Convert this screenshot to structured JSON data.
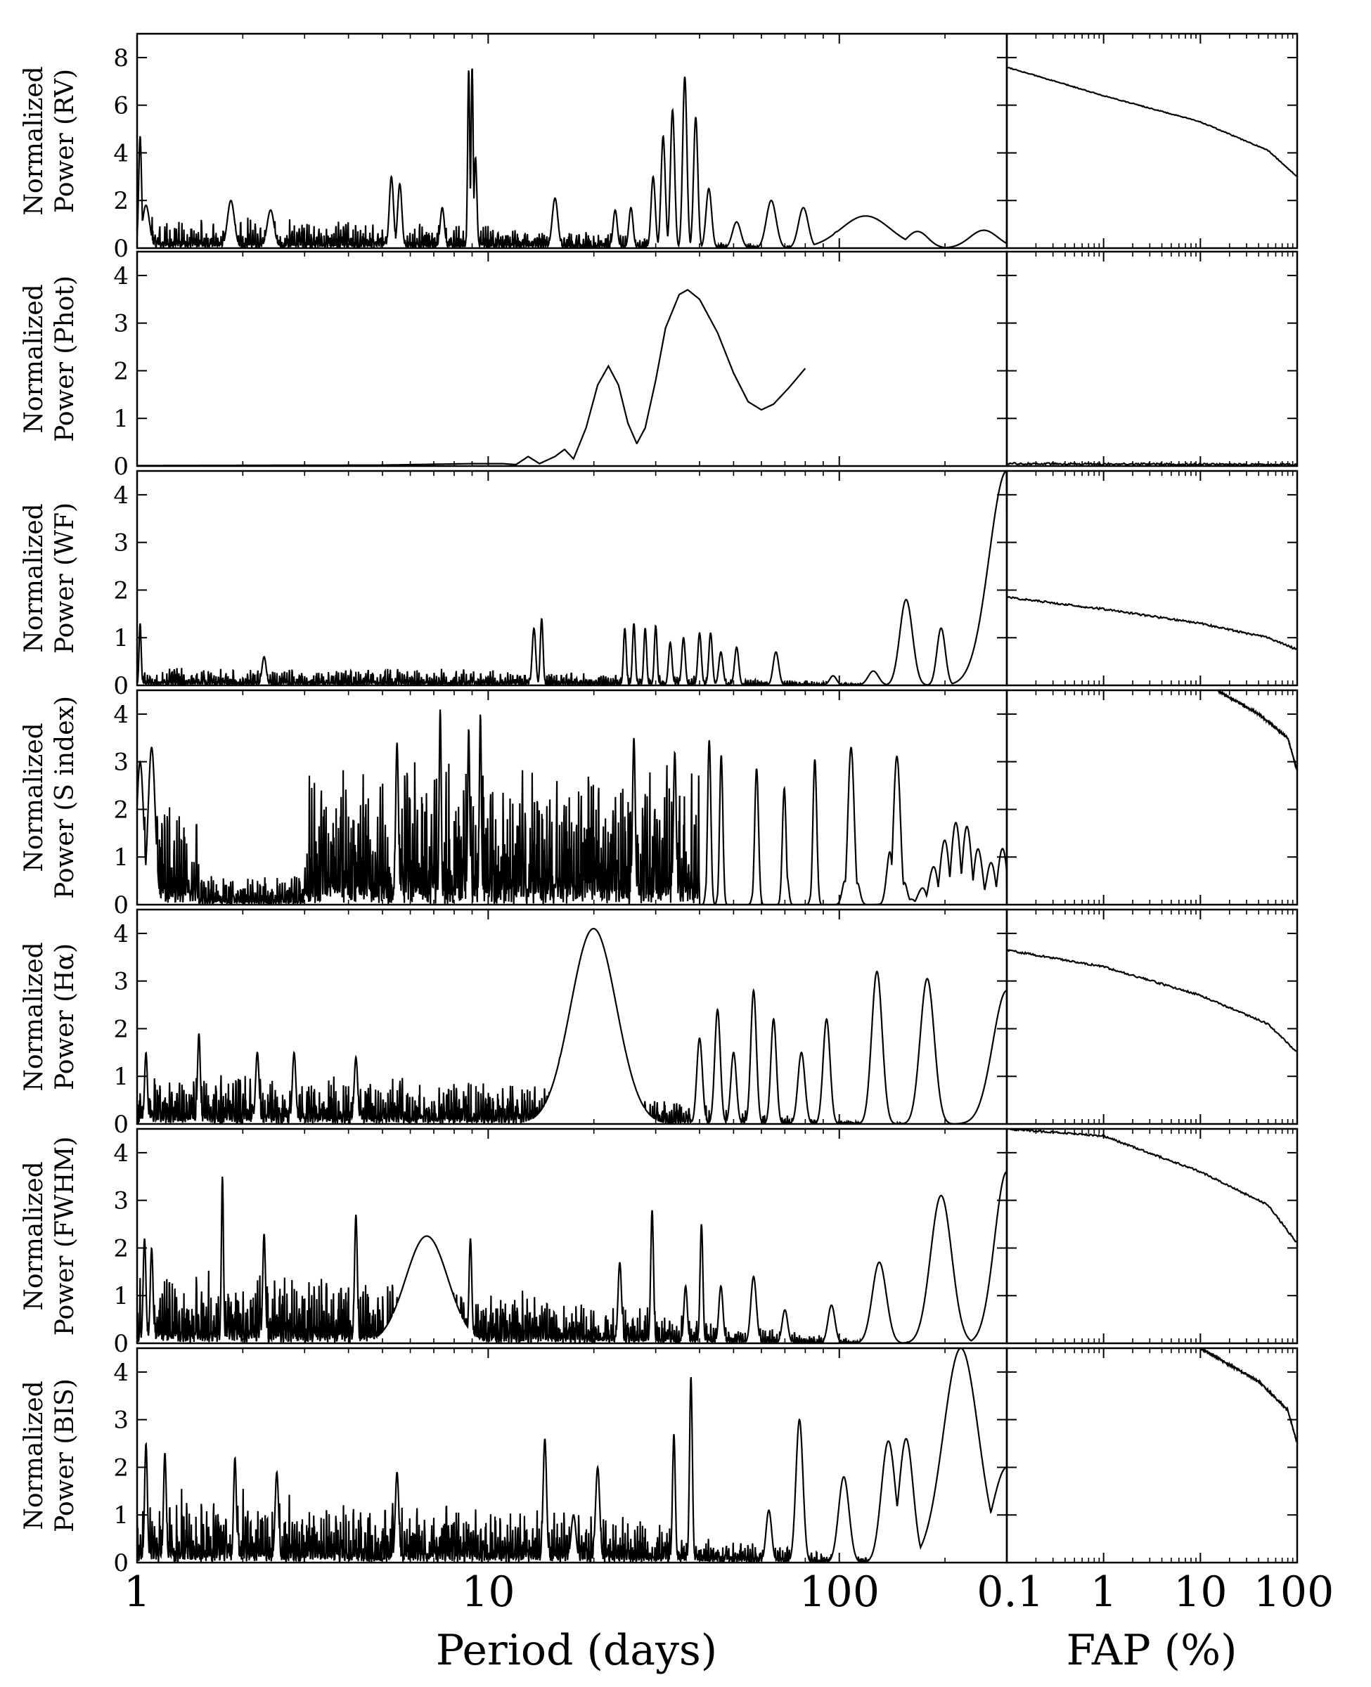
{
  "chart_data": [
    {
      "type": "line",
      "panel": "rv",
      "ylabel_lines": [
        "Normalized",
        "Power (RV)"
      ],
      "ylim": [
        0,
        9
      ],
      "yticks": [
        0,
        2,
        4,
        6,
        8
      ],
      "x_scale": "log",
      "xlim": [
        1,
        300
      ],
      "x_extent": [
        1,
        300
      ],
      "peaks": [
        {
          "x": 1.02,
          "y": 4.7,
          "w": 0.004
        },
        {
          "x": 1.06,
          "y": 1.8,
          "w": 0.01
        },
        {
          "x": 1.85,
          "y": 2.0,
          "w": 0.01
        },
        {
          "x": 2.4,
          "y": 1.6,
          "w": 0.01
        },
        {
          "x": 5.3,
          "y": 3.0,
          "w": 0.006
        },
        {
          "x": 5.6,
          "y": 2.7,
          "w": 0.006
        },
        {
          "x": 7.4,
          "y": 1.7,
          "w": 0.006
        },
        {
          "x": 8.8,
          "y": 7.5,
          "w": 0.003
        },
        {
          "x": 9.0,
          "y": 7.6,
          "w": 0.003
        },
        {
          "x": 9.2,
          "y": 3.8,
          "w": 0.004
        },
        {
          "x": 15.5,
          "y": 2.1,
          "w": 0.008
        },
        {
          "x": 23,
          "y": 1.6,
          "w": 0.006
        },
        {
          "x": 25.5,
          "y": 1.7,
          "w": 0.006
        },
        {
          "x": 29.5,
          "y": 3.0,
          "w": 0.006
        },
        {
          "x": 31.5,
          "y": 4.7,
          "w": 0.006
        },
        {
          "x": 33.5,
          "y": 5.8,
          "w": 0.006
        },
        {
          "x": 36.3,
          "y": 7.2,
          "w": 0.006
        },
        {
          "x": 39,
          "y": 5.5,
          "w": 0.006
        },
        {
          "x": 42.5,
          "y": 2.5,
          "w": 0.008
        },
        {
          "x": 51,
          "y": 1.1,
          "w": 0.012
        },
        {
          "x": 64,
          "y": 2.0,
          "w": 0.014
        },
        {
          "x": 79,
          "y": 1.7,
          "w": 0.014
        },
        {
          "x": 99,
          "y": 0.7,
          "w": 0.02
        },
        {
          "x": 132,
          "y": 0.6,
          "w": 0.025
        },
        {
          "x": 167,
          "y": 0.7,
          "w": 0.03
        },
        {
          "x": 258,
          "y": 0.75,
          "w": 0.04
        }
      ],
      "tail_peak": {
        "x": 4.15,
        "y": 1.35,
        "w": 0.07
      },
      "noise_level": 0.7,
      "noise_decay": 30,
      "end_value": 0.8,
      "fap_curve": [
        [
          0.1,
          7.6
        ],
        [
          1,
          6.4
        ],
        [
          10,
          5.3
        ],
        [
          50,
          4.1
        ],
        [
          100,
          3.0
        ]
      ]
    },
    {
      "type": "line",
      "panel": "phot",
      "ylabel_lines": [
        "Normalized",
        "Power (Phot)"
      ],
      "ylim": [
        0,
        4.5
      ],
      "yticks": [
        0,
        1,
        2,
        3,
        4
      ],
      "x_scale": "log",
      "xlim": [
        1,
        300
      ],
      "x_extent": [
        1,
        80
      ],
      "smooth_curve": [
        [
          1,
          0.01
        ],
        [
          5,
          0.02
        ],
        [
          9,
          0.05
        ],
        [
          11,
          0.05
        ],
        [
          12,
          0.03
        ],
        [
          13,
          0.2
        ],
        [
          14,
          0.05
        ],
        [
          15.5,
          0.2
        ],
        [
          16.5,
          0.35
        ],
        [
          17.5,
          0.15
        ],
        [
          19,
          0.8
        ],
        [
          20.5,
          1.7
        ],
        [
          22,
          2.1
        ],
        [
          23.5,
          1.7
        ],
        [
          25,
          0.9
        ],
        [
          26.5,
          0.47
        ],
        [
          28,
          0.8
        ],
        [
          30,
          1.8
        ],
        [
          32,
          2.9
        ],
        [
          35,
          3.6
        ],
        [
          37,
          3.7
        ],
        [
          40,
          3.5
        ],
        [
          45,
          2.8
        ],
        [
          50,
          1.95
        ],
        [
          55,
          1.35
        ],
        [
          60,
          1.18
        ],
        [
          65,
          1.3
        ],
        [
          72,
          1.65
        ],
        [
          80,
          2.05
        ]
      ],
      "fap_curve": [
        [
          0.1,
          0.05
        ],
        [
          100,
          0.03
        ]
      ]
    },
    {
      "type": "line",
      "panel": "wf",
      "ylabel_lines": [
        "Normalized",
        "Power (WF)"
      ],
      "ylim": [
        0,
        4.5
      ],
      "yticks": [
        0,
        1,
        2,
        3,
        4
      ],
      "x_scale": "log",
      "xlim": [
        1,
        300
      ],
      "x_extent": [
        1,
        300
      ],
      "peaks": [
        {
          "x": 1.02,
          "y": 1.3,
          "w": 0.003
        },
        {
          "x": 2.3,
          "y": 0.6,
          "w": 0.006
        },
        {
          "x": 13.5,
          "y": 1.2,
          "w": 0.005
        },
        {
          "x": 14.2,
          "y": 1.4,
          "w": 0.004
        },
        {
          "x": 24.5,
          "y": 1.2,
          "w": 0.004
        },
        {
          "x": 26,
          "y": 1.3,
          "w": 0.004
        },
        {
          "x": 28,
          "y": 1.2,
          "w": 0.004
        },
        {
          "x": 30,
          "y": 1.25,
          "w": 0.004
        },
        {
          "x": 33,
          "y": 0.9,
          "w": 0.005
        },
        {
          "x": 36,
          "y": 1.0,
          "w": 0.005
        },
        {
          "x": 40,
          "y": 1.1,
          "w": 0.005
        },
        {
          "x": 43,
          "y": 1.1,
          "w": 0.005
        },
        {
          "x": 46,
          "y": 0.7,
          "w": 0.006
        },
        {
          "x": 51,
          "y": 0.8,
          "w": 0.006
        },
        {
          "x": 66,
          "y": 0.7,
          "w": 0.008
        },
        {
          "x": 96,
          "y": 0.2,
          "w": 0.01
        },
        {
          "x": 125,
          "y": 0.3,
          "w": 0.015
        },
        {
          "x": 155,
          "y": 1.8,
          "w": 0.018
        },
        {
          "x": 195,
          "y": 1.2,
          "w": 0.012
        },
        {
          "x": 300,
          "y": 4.5,
          "w": 0.05
        }
      ],
      "tail_peak": {
        "x": 6.0,
        "y": 3.15,
        "w": 0.05
      },
      "tail_extra": {
        "x": 9.5,
        "y": 3.6,
        "w": 0.06
      },
      "noise_level": 0.2,
      "noise_decay": 60,
      "end_value": 3.6,
      "fap_curve": [
        [
          0.1,
          1.85
        ],
        [
          1,
          1.6
        ],
        [
          10,
          1.3
        ],
        [
          50,
          1.0
        ],
        [
          100,
          0.75
        ]
      ]
    },
    {
      "type": "line",
      "panel": "sindex",
      "ylabel_lines": [
        "Normalized",
        "Power (S index)"
      ],
      "ylim": [
        0,
        4.5
      ],
      "yticks": [
        0,
        1,
        2,
        3,
        4
      ],
      "x_scale": "log",
      "xlim": [
        1,
        300
      ],
      "x_extent": [
        1,
        300
      ],
      "peaks": [
        {
          "x": 1.02,
          "y": 3.0,
          "w": 0.01
        },
        {
          "x": 1.1,
          "y": 3.3,
          "w": 0.01
        },
        {
          "x": 5.5,
          "y": 3.4,
          "w": 0.004
        },
        {
          "x": 7.3,
          "y": 4.1,
          "w": 0.003
        },
        {
          "x": 8.8,
          "y": 3.7,
          "w": 0.003
        },
        {
          "x": 9.5,
          "y": 4.0,
          "w": 0.003
        },
        {
          "x": 26,
          "y": 3.5,
          "w": 0.004
        },
        {
          "x": 34,
          "y": 3.2,
          "w": 0.004
        },
        {
          "x": 42.5,
          "y": 4.2,
          "w": 0.005
        },
        {
          "x": 46,
          "y": 3.6,
          "w": 0.005
        },
        {
          "x": 58,
          "y": 3.1,
          "w": 0.006
        },
        {
          "x": 70,
          "y": 3.1,
          "w": 0.006
        },
        {
          "x": 85,
          "y": 3.25,
          "w": 0.006
        },
        {
          "x": 108,
          "y": 3.3,
          "w": 0.012
        },
        {
          "x": 145,
          "y": 3.2,
          "w": 0.015
        },
        {
          "x": 220,
          "y": 1.75,
          "w": 0.06
        },
        {
          "x": 300,
          "y": 0.25,
          "w": 0.05
        }
      ],
      "tail_peak": {
        "x": 5.15,
        "y": 1.8,
        "w": 0.12
      },
      "noise_level": 1.6,
      "noise_decay": 1000,
      "noise_band": [
        3,
        40
      ],
      "dip_band": [
        1.5,
        3
      ],
      "end_value": 0.3,
      "fap_curve": [
        [
          15,
          4.5
        ],
        [
          40,
          4.0
        ],
        [
          80,
          3.5
        ],
        [
          100,
          2.8
        ]
      ]
    },
    {
      "type": "line",
      "panel": "halpha",
      "ylabel_lines": [
        "Normalized",
        "Power (Hα)"
      ],
      "ylim": [
        0,
        4.5
      ],
      "yticks": [
        0,
        1,
        2,
        3,
        4
      ],
      "x_scale": "log",
      "xlim": [
        1,
        300
      ],
      "x_extent": [
        1,
        300
      ],
      "peaks": [
        {
          "x": 1.06,
          "y": 1.5,
          "w": 0.004
        },
        {
          "x": 1.5,
          "y": 1.9,
          "w": 0.004
        },
        {
          "x": 2.2,
          "y": 1.5,
          "w": 0.005
        },
        {
          "x": 2.8,
          "y": 1.5,
          "w": 0.005
        },
        {
          "x": 4.2,
          "y": 1.4,
          "w": 0.005
        },
        {
          "x": 16,
          "y": 1.4,
          "w": 0.006
        },
        {
          "x": 18,
          "y": 1.0,
          "w": 0.006
        },
        {
          "x": 40,
          "y": 1.8,
          "w": 0.008
        },
        {
          "x": 45,
          "y": 2.4,
          "w": 0.008
        },
        {
          "x": 50,
          "y": 1.5,
          "w": 0.008
        },
        {
          "x": 57,
          "y": 2.8,
          "w": 0.008
        },
        {
          "x": 65,
          "y": 2.2,
          "w": 0.008
        },
        {
          "x": 78,
          "y": 1.5,
          "w": 0.01
        },
        {
          "x": 92,
          "y": 2.2,
          "w": 0.01
        },
        {
          "x": 128,
          "y": 3.2,
          "w": 0.015
        },
        {
          "x": 178,
          "y": 3.05,
          "w": 0.02
        },
        {
          "x": 300,
          "y": 2.8,
          "w": 0.04
        }
      ],
      "tail_peak": {
        "x": 2.6,
        "y": 4.1,
        "w": 0.065
      },
      "noise_level": 0.6,
      "noise_decay": 40,
      "end_value": 2.8,
      "fap_curve": [
        [
          0.1,
          3.65
        ],
        [
          1,
          3.3
        ],
        [
          10,
          2.7
        ],
        [
          50,
          2.1
        ],
        [
          100,
          1.5
        ]
      ]
    },
    {
      "type": "line",
      "panel": "fwhm",
      "ylabel_lines": [
        "Normalized",
        "Power (FWHM)"
      ],
      "ylim": [
        0,
        4.5
      ],
      "yticks": [
        0,
        1,
        2,
        3,
        4
      ],
      "x_scale": "log",
      "xlim": [
        1,
        300
      ],
      "x_extent": [
        1,
        300
      ],
      "peaks": [
        {
          "x": 1.05,
          "y": 2.2,
          "w": 0.004
        },
        {
          "x": 1.1,
          "y": 2.0,
          "w": 0.004
        },
        {
          "x": 1.75,
          "y": 3.5,
          "w": 0.003
        },
        {
          "x": 2.3,
          "y": 2.3,
          "w": 0.004
        },
        {
          "x": 4.2,
          "y": 2.7,
          "w": 0.004
        },
        {
          "x": 8.9,
          "y": 2.2,
          "w": 0.004
        },
        {
          "x": 23.7,
          "y": 1.7,
          "w": 0.005
        },
        {
          "x": 29.3,
          "y": 2.8,
          "w": 0.004
        },
        {
          "x": 36.5,
          "y": 1.2,
          "w": 0.005
        },
        {
          "x": 40.5,
          "y": 2.5,
          "w": 0.004
        },
        {
          "x": 46,
          "y": 1.2,
          "w": 0.006
        },
        {
          "x": 57,
          "y": 1.4,
          "w": 0.008
        },
        {
          "x": 70,
          "y": 0.7,
          "w": 0.008
        },
        {
          "x": 95,
          "y": 0.8,
          "w": 0.01
        },
        {
          "x": 130,
          "y": 1.7,
          "w": 0.02
        },
        {
          "x": 195,
          "y": 3.1,
          "w": 0.03
        },
        {
          "x": 300,
          "y": 3.6,
          "w": 0.035
        }
      ],
      "tail_peak": {
        "x": 1.65,
        "y": 2.25,
        "w": 0.06
      },
      "tail_extra": {
        "x": 6.2,
        "y": 4.0,
        "w": 0.065
      },
      "noise_level": 0.8,
      "noise_decay": 40,
      "end_value": 3.6,
      "fap_curve": [
        [
          0.1,
          4.5
        ],
        [
          1,
          4.35
        ],
        [
          10,
          3.6
        ],
        [
          50,
          2.9
        ],
        [
          100,
          2.1
        ]
      ]
    },
    {
      "type": "line",
      "panel": "bis",
      "ylabel_lines": [
        "Normalized",
        "Power (BIS)"
      ],
      "ylim": [
        0,
        4.5
      ],
      "yticks": [
        0,
        1,
        2,
        3,
        4
      ],
      "x_scale": "log",
      "xlim": [
        1,
        300
      ],
      "x_extent": [
        1,
        300
      ],
      "xticks": [
        1,
        10,
        100
      ],
      "xtick_labels": [
        "1",
        "10",
        "100"
      ],
      "xlabel": "Period (days)",
      "peaks": [
        {
          "x": 1.06,
          "y": 2.5,
          "w": 0.004
        },
        {
          "x": 1.2,
          "y": 2.3,
          "w": 0.004
        },
        {
          "x": 1.9,
          "y": 2.2,
          "w": 0.004
        },
        {
          "x": 2.5,
          "y": 1.9,
          "w": 0.005
        },
        {
          "x": 5.5,
          "y": 1.9,
          "w": 0.005
        },
        {
          "x": 14.5,
          "y": 2.6,
          "w": 0.005
        },
        {
          "x": 17.5,
          "y": 1.0,
          "w": 0.007
        },
        {
          "x": 20.5,
          "y": 2.0,
          "w": 0.006
        },
        {
          "x": 33.8,
          "y": 2.7,
          "w": 0.004
        },
        {
          "x": 37.8,
          "y": 3.9,
          "w": 0.004
        },
        {
          "x": 63,
          "y": 1.1,
          "w": 0.008
        },
        {
          "x": 77,
          "y": 3.0,
          "w": 0.01
        },
        {
          "x": 103,
          "y": 1.8,
          "w": 0.015
        },
        {
          "x": 138,
          "y": 2.55,
          "w": 0.02
        },
        {
          "x": 155,
          "y": 2.6,
          "w": 0.02
        },
        {
          "x": 222,
          "y": 4.5,
          "w": 0.05
        },
        {
          "x": 300,
          "y": 2.0,
          "w": 0.04
        }
      ],
      "tail_peak": {
        "x": 5.5,
        "y": 2.65,
        "w": 0.065
      },
      "noise_level": 0.8,
      "noise_decay": 50,
      "end_value": 2.0,
      "fap_curve": [
        [
          10,
          4.5
        ],
        [
          40,
          3.8
        ],
        [
          80,
          3.2
        ],
        [
          100,
          2.5
        ]
      ]
    }
  ],
  "fap_axis": {
    "x_scale": "log",
    "xlim": [
      0.1,
      100
    ],
    "xticks": [
      0.1,
      1,
      10,
      100
    ],
    "xtick_labels": [
      "0.1",
      "1",
      "10",
      "100"
    ],
    "xlabel": "FAP (%)"
  }
}
